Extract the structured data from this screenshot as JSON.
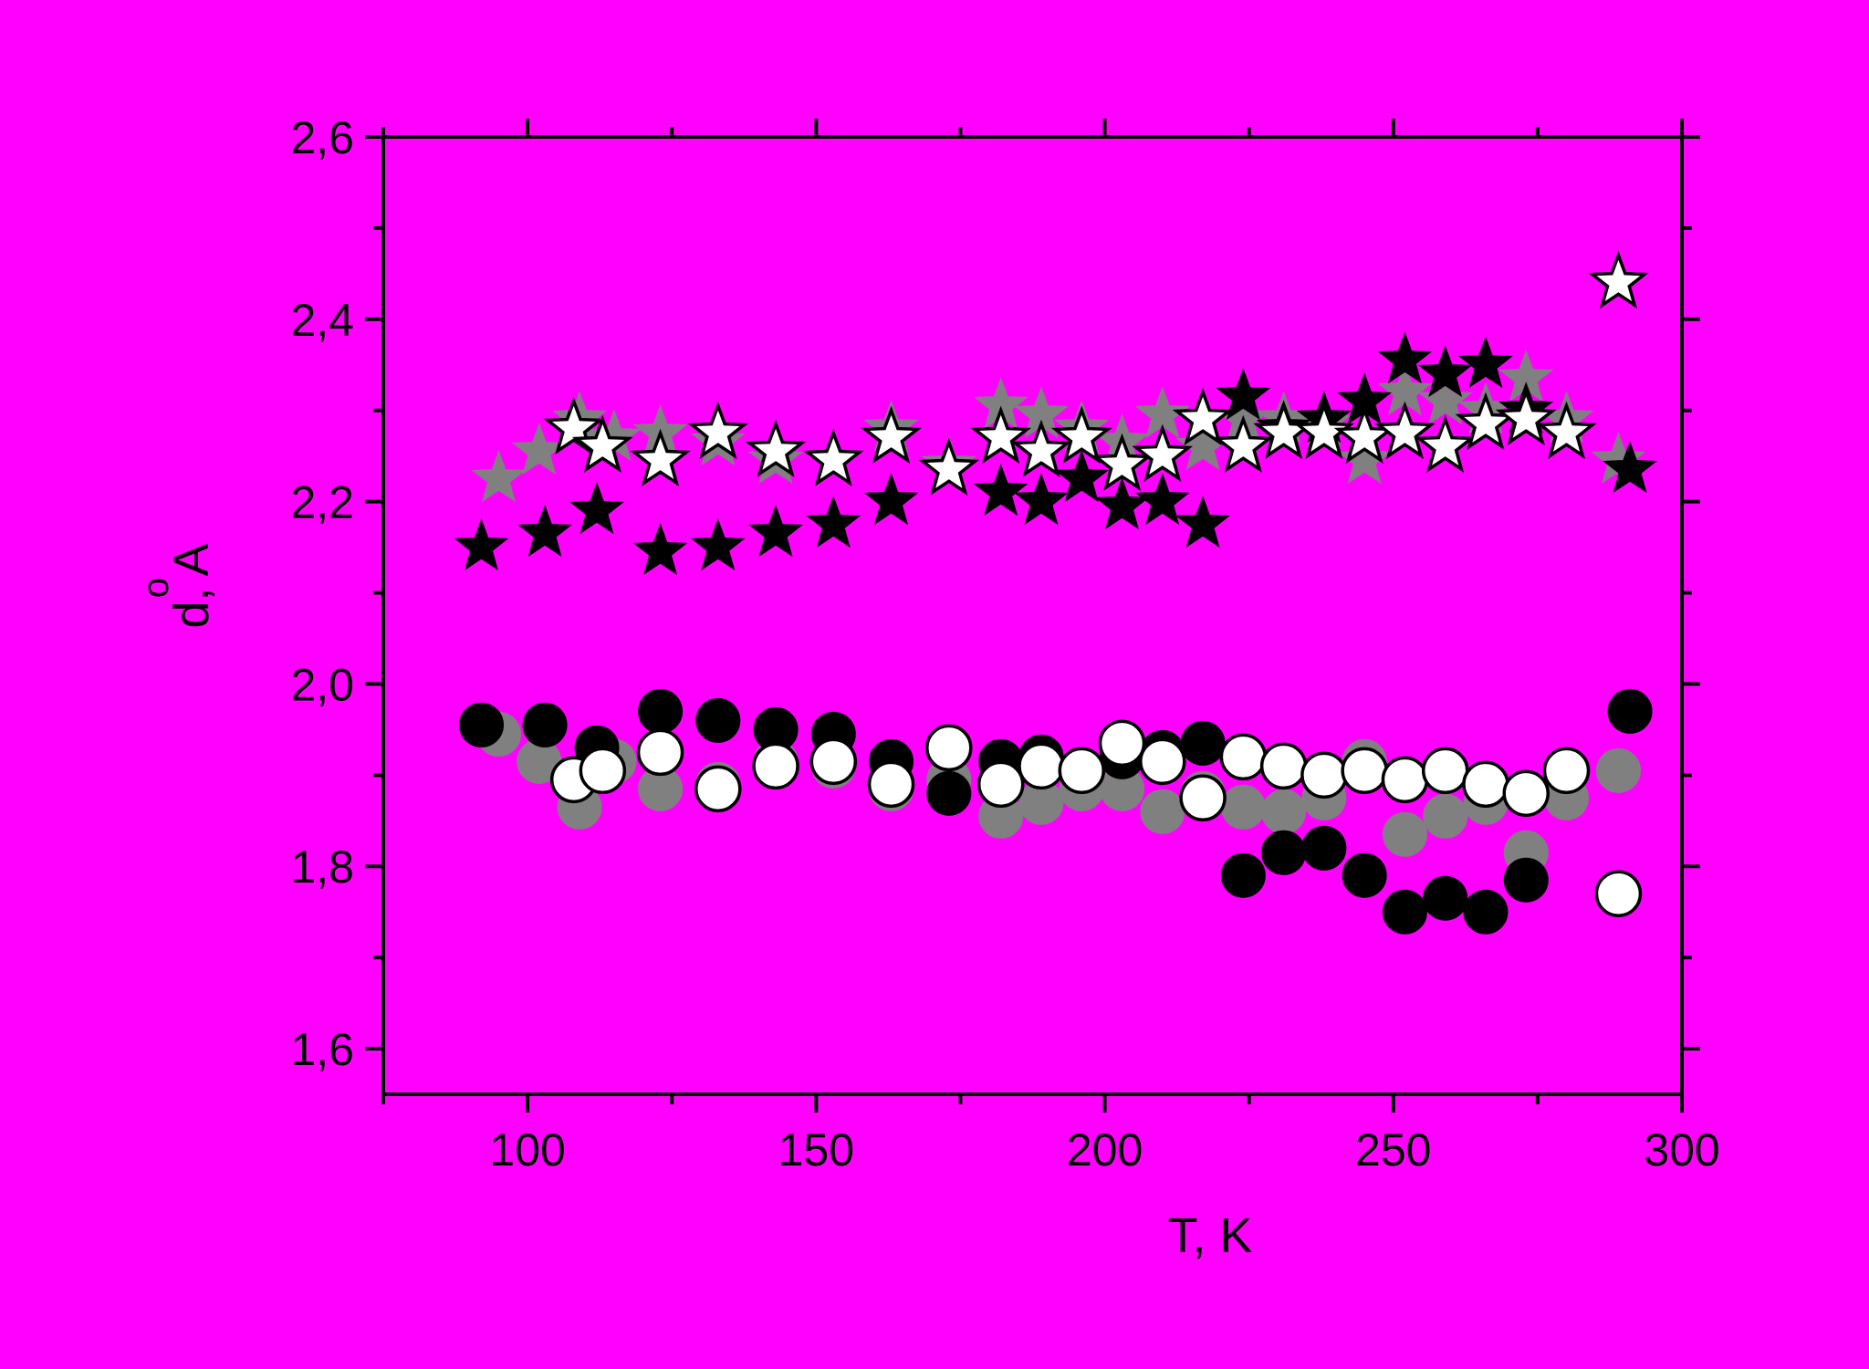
{
  "chart_data": {
    "type": "scatter",
    "title": "",
    "xlabel": "T, K",
    "ylabel": "d, A",
    "ylabel_accent": "o",
    "xlim": [
      75,
      300
    ],
    "ylim": [
      1.55,
      2.6
    ],
    "x_ticks": [
      100,
      150,
      200,
      250,
      300
    ],
    "x_tick_labels": [
      "100",
      "150",
      "200",
      "250",
      "300"
    ],
    "y_ticks": [
      1.6,
      1.8,
      2.0,
      2.2,
      2.4,
      2.6
    ],
    "y_tick_labels": [
      "1,6",
      "1,8",
      "2,0",
      "2,2",
      "2,4",
      "2,6"
    ],
    "grid": false,
    "legend": "none",
    "colors": {
      "background": "#ff00ff",
      "black": "#000000",
      "gray": "#808080",
      "white": "#ffffff"
    },
    "series": [
      {
        "marker": "star",
        "fill": "#808080",
        "stroke": "#808080",
        "points": [
          [
            95,
            2.225
          ],
          [
            102,
            2.255
          ],
          [
            109,
            2.29
          ],
          [
            115,
            2.27
          ],
          [
            123,
            2.275
          ],
          [
            133,
            2.265
          ],
          [
            143,
            2.245
          ],
          [
            153,
            2.245
          ],
          [
            163,
            2.28
          ],
          [
            173,
            2.24
          ],
          [
            182,
            2.305
          ],
          [
            189,
            2.295
          ],
          [
            196,
            2.28
          ],
          [
            203,
            2.265
          ],
          [
            210,
            2.295
          ],
          [
            217,
            2.26
          ],
          [
            224,
            2.29
          ],
          [
            231,
            2.29
          ],
          [
            238,
            2.285
          ],
          [
            245,
            2.245
          ],
          [
            252,
            2.32
          ],
          [
            259,
            2.31
          ],
          [
            266,
            2.3
          ],
          [
            273,
            2.335
          ],
          [
            280,
            2.29
          ],
          [
            289,
            2.245
          ]
        ]
      },
      {
        "marker": "star",
        "fill": "#000000",
        "stroke": "#000000",
        "points": [
          [
            92,
            2.15
          ],
          [
            103,
            2.165
          ],
          [
            112,
            2.19
          ],
          [
            123,
            2.145
          ],
          [
            133,
            2.15
          ],
          [
            143,
            2.165
          ],
          [
            153,
            2.175
          ],
          [
            163,
            2.2
          ],
          [
            182,
            2.21
          ],
          [
            189,
            2.2
          ],
          [
            196,
            2.225
          ],
          [
            203,
            2.195
          ],
          [
            210,
            2.2
          ],
          [
            217,
            2.175
          ],
          [
            224,
            2.315
          ],
          [
            231,
            2.28
          ],
          [
            238,
            2.29
          ],
          [
            245,
            2.31
          ],
          [
            252,
            2.355
          ],
          [
            259,
            2.34
          ],
          [
            266,
            2.35
          ],
          [
            273,
            2.3
          ],
          [
            291,
            2.235
          ]
        ]
      },
      {
        "marker": "star",
        "fill": "#ffffff",
        "stroke": "#000000",
        "points": [
          [
            108,
            2.28
          ],
          [
            113,
            2.26
          ],
          [
            123,
            2.245
          ],
          [
            133,
            2.275
          ],
          [
            143,
            2.255
          ],
          [
            153,
            2.245
          ],
          [
            163,
            2.27
          ],
          [
            173,
            2.235
          ],
          [
            182,
            2.27
          ],
          [
            189,
            2.255
          ],
          [
            196,
            2.27
          ],
          [
            203,
            2.24
          ],
          [
            210,
            2.25
          ],
          [
            217,
            2.29
          ],
          [
            224,
            2.26
          ],
          [
            231,
            2.275
          ],
          [
            238,
            2.275
          ],
          [
            245,
            2.27
          ],
          [
            252,
            2.275
          ],
          [
            259,
            2.26
          ],
          [
            266,
            2.285
          ],
          [
            273,
            2.29
          ],
          [
            280,
            2.275
          ],
          [
            289,
            2.44
          ]
        ]
      },
      {
        "marker": "circle",
        "fill": "#808080",
        "stroke": "#808080",
        "points": [
          [
            95,
            1.945
          ],
          [
            102,
            1.915
          ],
          [
            109,
            1.865
          ],
          [
            115,
            1.915
          ],
          [
            123,
            1.885
          ],
          [
            133,
            1.89
          ],
          [
            143,
            1.915
          ],
          [
            153,
            1.91
          ],
          [
            163,
            1.885
          ],
          [
            173,
            1.895
          ],
          [
            182,
            1.855
          ],
          [
            189,
            1.87
          ],
          [
            196,
            1.885
          ],
          [
            203,
            1.885
          ],
          [
            210,
            1.86
          ],
          [
            217,
            1.88
          ],
          [
            224,
            1.865
          ],
          [
            231,
            1.86
          ],
          [
            238,
            1.875
          ],
          [
            245,
            1.915
          ],
          [
            252,
            1.835
          ],
          [
            259,
            1.855
          ],
          [
            266,
            1.87
          ],
          [
            273,
            1.815
          ],
          [
            280,
            1.875
          ],
          [
            289,
            1.905
          ]
        ]
      },
      {
        "marker": "circle",
        "fill": "#000000",
        "stroke": "#000000",
        "points": [
          [
            92,
            1.955
          ],
          [
            103,
            1.955
          ],
          [
            112,
            1.93
          ],
          [
            123,
            1.97
          ],
          [
            133,
            1.96
          ],
          [
            143,
            1.95
          ],
          [
            153,
            1.945
          ],
          [
            163,
            1.915
          ],
          [
            173,
            1.88
          ],
          [
            182,
            1.915
          ],
          [
            189,
            1.92
          ],
          [
            196,
            1.905
          ],
          [
            203,
            1.92
          ],
          [
            210,
            1.925
          ],
          [
            217,
            1.935
          ],
          [
            224,
            1.79
          ],
          [
            231,
            1.815
          ],
          [
            238,
            1.82
          ],
          [
            245,
            1.79
          ],
          [
            252,
            1.75
          ],
          [
            259,
            1.765
          ],
          [
            266,
            1.75
          ],
          [
            273,
            1.785
          ],
          [
            291,
            1.97
          ]
        ]
      },
      {
        "marker": "circle",
        "fill": "#ffffff",
        "stroke": "#000000",
        "points": [
          [
            108,
            1.895
          ],
          [
            113,
            1.905
          ],
          [
            123,
            1.925
          ],
          [
            133,
            1.885
          ],
          [
            143,
            1.91
          ],
          [
            153,
            1.915
          ],
          [
            163,
            1.89
          ],
          [
            173,
            1.93
          ],
          [
            182,
            1.89
          ],
          [
            189,
            1.91
          ],
          [
            196,
            1.905
          ],
          [
            203,
            1.935
          ],
          [
            210,
            1.915
          ],
          [
            217,
            1.875
          ],
          [
            224,
            1.92
          ],
          [
            231,
            1.91
          ],
          [
            238,
            1.9
          ],
          [
            245,
            1.905
          ],
          [
            252,
            1.895
          ],
          [
            259,
            1.905
          ],
          [
            266,
            1.89
          ],
          [
            273,
            1.88
          ],
          [
            280,
            1.905
          ],
          [
            289,
            1.77
          ]
        ]
      }
    ]
  }
}
